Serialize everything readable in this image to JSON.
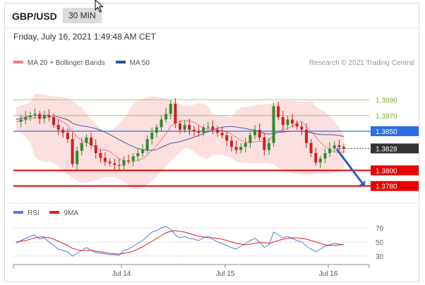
{
  "header": {
    "pair": "GBP/USD",
    "timeframe": "30 MIN"
  },
  "timestamp": "Friday, July 16, 2021 1:49:48 AM CET",
  "legend": {
    "ma20": {
      "label": "MA 20 + Bollinger Bands",
      "color": "#f08080"
    },
    "ma50": {
      "label": "MA 50",
      "color": "#2f5597"
    },
    "credit": "Research © 2021 Trading Central"
  },
  "rsi_legend": {
    "rsi": {
      "label": "RSI",
      "color": "#4f7be0"
    },
    "ma9": {
      "label": "9MA",
      "color": "#e02020"
    }
  },
  "chart_data": {
    "type": "candlestick",
    "levels": [
      {
        "label": "1.3890",
        "value": 1.389,
        "kind": "target",
        "color": "#8cc63f"
      },
      {
        "label": "1.3870",
        "value": 1.387,
        "kind": "target",
        "color": "#8cc63f"
      },
      {
        "label": "1.3850",
        "value": 1.385,
        "kind": "pivot",
        "color": "#2d6ee0"
      },
      {
        "label": "1.3828",
        "value": 1.3828,
        "kind": "last",
        "color": "#333333"
      },
      {
        "label": "1.3800",
        "value": 1.38,
        "kind": "support",
        "color": "#e60000"
      },
      {
        "label": "1.3780",
        "value": 1.378,
        "kind": "support",
        "color": "#e60000"
      }
    ],
    "x_ticks": [
      "Jul 14",
      "Jul 15",
      "Jul 16"
    ],
    "rsi_ticks": [
      "70",
      "50",
      "30"
    ],
    "ylim": [
      1.3768,
      1.3905
    ],
    "close_path": [
      1.3862,
      1.3865,
      1.3868,
      1.387,
      1.3872,
      1.3866,
      1.387,
      1.3868,
      1.3858,
      1.3852,
      1.3848,
      1.384,
      1.3808,
      1.3825,
      1.3835,
      1.3842,
      1.3832,
      1.3822,
      1.3816,
      1.3811,
      1.3809,
      1.3807,
      1.3806,
      1.3813,
      1.3812,
      1.3818,
      1.3822,
      1.3826,
      1.384,
      1.3848,
      1.3855,
      1.3865,
      1.3872,
      1.3885,
      1.386,
      1.3852,
      1.3858,
      1.3852,
      1.385,
      1.3848,
      1.3855,
      1.3856,
      1.3852,
      1.3848,
      1.3845,
      1.3838,
      1.383,
      1.3826,
      1.383,
      1.3835,
      1.3845,
      1.3852,
      1.3842,
      1.3826,
      1.3835,
      1.3882,
      1.3868,
      1.3858,
      1.3865,
      1.386,
      1.3856,
      1.3852,
      1.3835,
      1.3822,
      1.381,
      1.3815,
      1.3822,
      1.3828,
      1.3832,
      1.383,
      1.3828
    ],
    "rsi_path": [
      48,
      52,
      55,
      58,
      60,
      54,
      56,
      50,
      45,
      40,
      38,
      36,
      30,
      34,
      38,
      42,
      38,
      35,
      34,
      33,
      32,
      32,
      31,
      38,
      40,
      44,
      48,
      52,
      58,
      64,
      66,
      70,
      72,
      68,
      60,
      56,
      58,
      55,
      54,
      52,
      56,
      58,
      54,
      50,
      48,
      45,
      42,
      40,
      44,
      48,
      52,
      55,
      50,
      42,
      46,
      64,
      60,
      56,
      58,
      55,
      52,
      50,
      44,
      40,
      36,
      40,
      44,
      46,
      48,
      47,
      46
    ],
    "rsi_ma9_path": [
      50,
      51,
      52,
      54,
      56,
      57,
      57,
      56,
      54,
      51,
      48,
      45,
      41,
      39,
      38,
      38,
      38,
      37,
      36,
      35,
      34,
      33,
      33,
      34,
      35,
      37,
      40,
      43,
      47,
      51,
      55,
      59,
      63,
      65,
      66,
      65,
      64,
      62,
      60,
      58,
      57,
      56,
      56,
      55,
      54,
      52,
      50,
      48,
      47,
      46,
      47,
      48,
      49,
      49,
      48,
      50,
      52,
      54,
      55,
      56,
      56,
      55,
      54,
      52,
      50,
      48,
      46,
      45,
      45,
      46,
      46
    ]
  }
}
